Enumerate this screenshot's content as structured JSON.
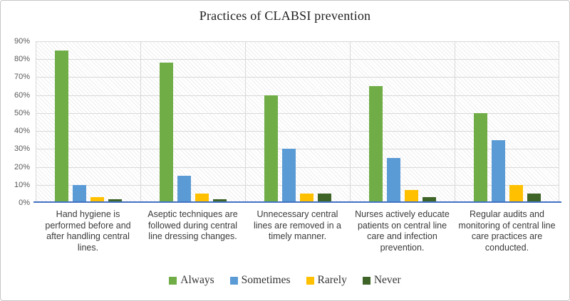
{
  "chart_data": {
    "type": "bar",
    "title": "Practices of CLABSI prevention",
    "categories": [
      "Hand hygiene is performed before and after handling central lines.",
      "Aseptic techniques are followed during central line dressing changes.",
      "Unnecessary central lines are removed in a timely manner.",
      "Nurses actively educate patients on central line care and infection prevention.",
      "Regular audits and monitoring of central line care practices are conducted."
    ],
    "series": [
      {
        "name": "Always",
        "color": "#70AD47",
        "values": [
          85,
          78,
          60,
          65,
          50
        ]
      },
      {
        "name": "Sometimes",
        "color": "#5B9BD5",
        "values": [
          10,
          15,
          30,
          25,
          35
        ]
      },
      {
        "name": "Rarely",
        "color": "#FFC000",
        "values": [
          3,
          5,
          5,
          7,
          10
        ]
      },
      {
        "name": "Never",
        "color": "#3E6428",
        "values": [
          2,
          2,
          5,
          3,
          5
        ]
      }
    ],
    "ylim": [
      0,
      90
    ],
    "ytick_step": 10,
    "ytick_labels": [
      "0%",
      "10%",
      "20%",
      "30%",
      "40%",
      "50%",
      "60%",
      "70%",
      "80%",
      "90%"
    ],
    "grid": true,
    "plot_fill": "diagonal-hatch",
    "legend_position": "bottom",
    "axis_line_color": "#4472C4",
    "gridline_color": "#D9D9D9"
  }
}
